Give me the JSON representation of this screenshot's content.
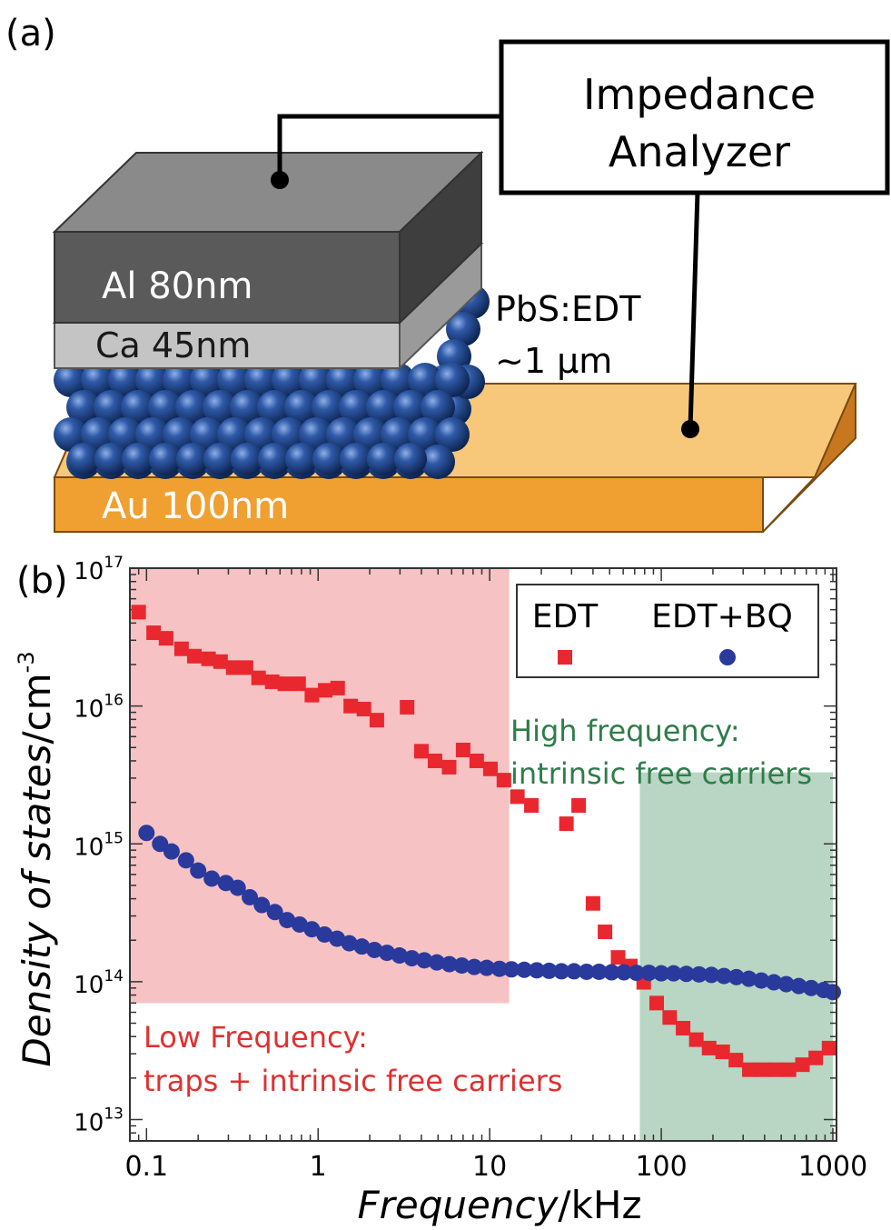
{
  "panel_a": {
    "label": "(a)",
    "analyzer": {
      "line1": "Impedance",
      "line2": "Analyzer"
    },
    "layers": {
      "al": "Al 80nm",
      "ca": "Ca 45nm",
      "pbs_line1": "PbS:EDT",
      "pbs_line2": "~1 μm",
      "au": "Au 100nm"
    },
    "colors": {
      "al": "#5a5a5a",
      "ca": "#c4c4c4",
      "au": "#f0a030",
      "sphere": "#1f4a8c"
    }
  },
  "panel_b": {
    "label": "(b)",
    "legend": {
      "edt": "EDT",
      "edtbq": "EDT+BQ"
    },
    "annotations": {
      "high_line1": "High frequency:",
      "high_line2": "intrinsic free carriers",
      "low_line1": "Low Frequency:",
      "low_line2": "traps + intrinsic free carriers"
    },
    "colors": {
      "edt": "#e8282e",
      "edtbq": "#2a3a9c",
      "low_region": "#f7c2c4",
      "high_region": "#b9d5c3",
      "high_text": "#2e7d4a",
      "low_text": "#e03030"
    }
  },
  "chart_data": {
    "type": "scatter",
    "xlabel_main": "Frequency",
    "xlabel_unit": "/kHz",
    "ylabel_main": "Density of states",
    "ylabel_unit": "/cm",
    "ylabel_exp": "-3",
    "x_scale": "log",
    "y_scale": "log",
    "xlim": [
      0.08,
      1050
    ],
    "ylim": [
      7000000000000.0,
      1e+17
    ],
    "x_ticks": [
      {
        "value": 0.1,
        "label": "0.1"
      },
      {
        "value": 1,
        "label": "1"
      },
      {
        "value": 10,
        "label": "10"
      },
      {
        "value": 100,
        "label": "100"
      },
      {
        "value": 1000,
        "label": "1000"
      }
    ],
    "y_ticks": [
      {
        "value": 10000000000000.0,
        "base": "10",
        "exp": "13"
      },
      {
        "value": 100000000000000.0,
        "base": "10",
        "exp": "14"
      },
      {
        "value": 1000000000000000.0,
        "base": "10",
        "exp": "15"
      },
      {
        "value": 1e+16,
        "base": "10",
        "exp": "16"
      },
      {
        "value": 1e+17,
        "base": "10",
        "exp": "17"
      }
    ],
    "regions": [
      {
        "name": "low-frequency",
        "x": [
          0.08,
          13
        ],
        "y": [
          70000000000000.0,
          1e+17
        ]
      },
      {
        "name": "high-frequency",
        "x": [
          75,
          1000
        ],
        "y": [
          7000000000000.0,
          3300000000000000.0
        ]
      }
    ],
    "series": [
      {
        "name": "EDT",
        "marker": "square",
        "x": [
          0.09,
          0.11,
          0.13,
          0.16,
          0.19,
          0.23,
          0.27,
          0.32,
          0.38,
          0.45,
          0.54,
          0.64,
          0.77,
          0.92,
          1.1,
          1.3,
          1.55,
          1.85,
          2.2,
          3.3,
          4.0,
          4.8,
          5.8,
          7.0,
          8.4,
          10.1,
          12.1,
          14.5,
          17.5,
          28,
          33,
          40,
          47,
          56,
          66,
          79,
          94,
          112,
          134,
          160,
          190,
          228,
          272,
          326,
          390,
          465,
          555,
          665,
          795,
          950
        ],
        "y": [
          4.8e+16,
          3.4e+16,
          3.1e+16,
          2.6e+16,
          2.3e+16,
          2.2e+16,
          2.1e+16,
          1.9e+16,
          1.9e+16,
          1.6e+16,
          1.5e+16,
          1.45e+16,
          1.45e+16,
          1.2e+16,
          1.3e+16,
          1.35e+16,
          1e+16,
          9500000000000000.0,
          7900000000000000.0,
          9800000000000000.0,
          4700000000000000.0,
          4000000000000000.0,
          3600000000000000.0,
          4800000000000000.0,
          4000000000000000.0,
          3500000000000000.0,
          2900000000000000.0,
          2200000000000000.0,
          1900000000000000.0,
          1400000000000000.0,
          1900000000000000.0,
          370000000000000.0,
          230000000000000.0,
          150000000000000.0,
          130000000000000.0,
          99000000000000.0,
          70000000000000.0,
          55000000000000.0,
          46000000000000.0,
          38000000000000.0,
          33000000000000.0,
          31000000000000.0,
          27000000000000.0,
          23000000000000.0,
          23000000000000.0,
          23000000000000.0,
          23000000000000.0,
          25000000000000.0,
          28000000000000.0,
          33000000000000.0
        ]
      },
      {
        "name": "EDT+BQ",
        "marker": "circle",
        "x": [
          0.1,
          0.12,
          0.14,
          0.17,
          0.2,
          0.24,
          0.29,
          0.34,
          0.4,
          0.47,
          0.56,
          0.66,
          0.78,
          0.92,
          1.09,
          1.29,
          1.52,
          1.8,
          2.13,
          2.52,
          2.98,
          3.52,
          4.16,
          4.92,
          5.82,
          6.88,
          8.13,
          9.61,
          11.4,
          13.4,
          15.9,
          18.8,
          22.2,
          26.2,
          31.0,
          36.7,
          43.4,
          51.3,
          60.6,
          71.7,
          84.7,
          100,
          118,
          140,
          166,
          196,
          232,
          274,
          324,
          383,
          453,
          535,
          633,
          748,
          884,
          1000
        ],
        "y": [
          1200000000000000.0,
          1000000000000000.0,
          880000000000000.0,
          760000000000000.0,
          640000000000000.0,
          560000000000000.0,
          520000000000000.0,
          480000000000000.0,
          410000000000000.0,
          360000000000000.0,
          320000000000000.0,
          280000000000000.0,
          260000000000000.0,
          240000000000000.0,
          220000000000000.0,
          205000000000000.0,
          190000000000000.0,
          180000000000000.0,
          170000000000000.0,
          162000000000000.0,
          155000000000000.0,
          148000000000000.0,
          143000000000000.0,
          138000000000000.0,
          134000000000000.0,
          131000000000000.0,
          128000000000000.0,
          126000000000000.0,
          124000000000000.0,
          123000000000000.0,
          122000000000000.0,
          121000000000000.0,
          120000000000000.0,
          119000000000000.0,
          119000000000000.0,
          118000000000000.0,
          118000000000000.0,
          117000000000000.0,
          117000000000000.0,
          116000000000000.0,
          116000000000000.0,
          115000000000000.0,
          115000000000000.0,
          114000000000000.0,
          113000000000000.0,
          112000000000000.0,
          110000000000000.0,
          108000000000000.0,
          105000000000000.0,
          102000000000000.0,
          99000000000000.0,
          96000000000000.0,
          93000000000000.0,
          90000000000000.0,
          87000000000000.0,
          84000000000000.0
        ]
      }
    ],
    "legend_position": "top-right"
  }
}
